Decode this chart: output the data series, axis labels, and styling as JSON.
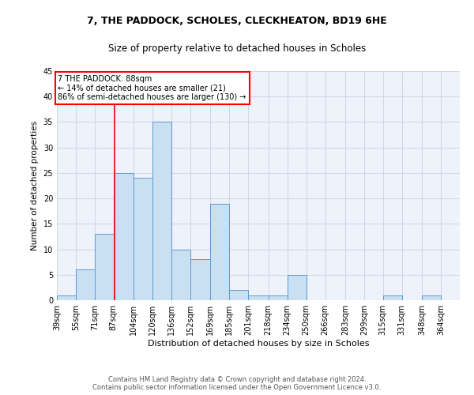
{
  "title1": "7, THE PADDOCK, SCHOLES, CLECKHEATON, BD19 6HE",
  "title2": "Size of property relative to detached houses in Scholes",
  "xlabel": "Distribution of detached houses by size in Scholes",
  "ylabel": "Number of detached properties",
  "bin_labels": [
    "39sqm",
    "55sqm",
    "71sqm",
    "87sqm",
    "104sqm",
    "120sqm",
    "136sqm",
    "152sqm",
    "169sqm",
    "185sqm",
    "201sqm",
    "218sqm",
    "234sqm",
    "250sqm",
    "266sqm",
    "283sqm",
    "299sqm",
    "315sqm",
    "331sqm",
    "348sqm",
    "364sqm"
  ],
  "bar_values": [
    1,
    6,
    13,
    25,
    24,
    35,
    10,
    8,
    19,
    2,
    1,
    1,
    5,
    0,
    0,
    0,
    0,
    1,
    0,
    1,
    0
  ],
  "bar_color": "#c9dff2",
  "bar_edge_color": "#5b9bd5",
  "grid_color": "#d0d8e8",
  "background_color": "#eef2fa",
  "red_line_x": 88,
  "annotation_text": "7 THE PADDOCK: 88sqm\n← 14% of detached houses are smaller (21)\n86% of semi-detached houses are larger (130) →",
  "annotation_box_color": "white",
  "annotation_box_edge": "red",
  "footer": "Contains HM Land Registry data © Crown copyright and database right 2024.\nContains public sector information licensed under the Open Government Licence v3.0.",
  "ylim": [
    0,
    45
  ],
  "yticks": [
    0,
    5,
    10,
    15,
    20,
    25,
    30,
    35,
    40,
    45
  ],
  "title1_fontsize": 9,
  "title2_fontsize": 8.5,
  "xlabel_fontsize": 8,
  "ylabel_fontsize": 7.5,
  "tick_fontsize": 7,
  "annotation_fontsize": 7,
  "footer_fontsize": 6
}
